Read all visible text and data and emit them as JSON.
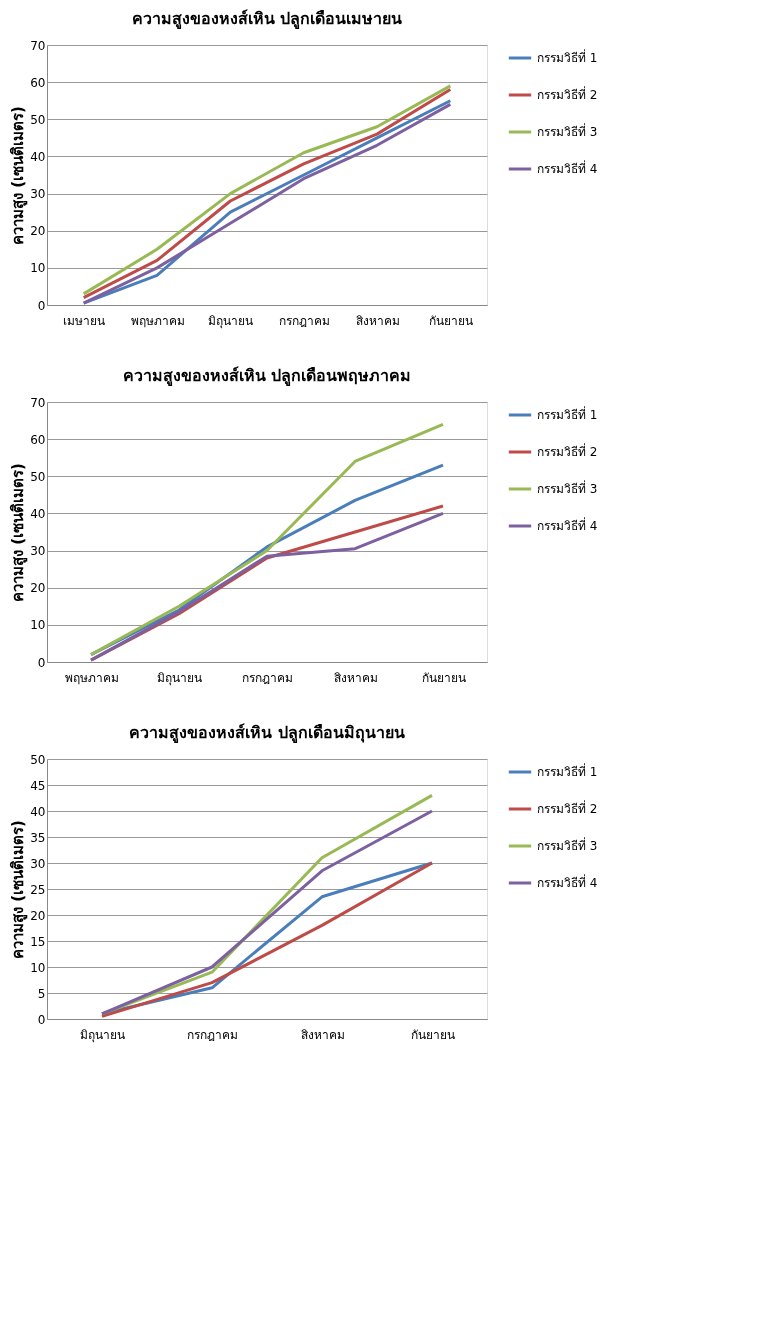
{
  "chart_data": [
    {
      "type": "line",
      "title": "ความสูงของหงส์เหิน ปลูกเดือนเมษายน",
      "ylabel": "ความสูง (เซนติเมตร)",
      "categories": [
        "เมษายน",
        "พฤษภาคม",
        "มิถุนายน",
        "กรกฎาคม",
        "สิงหาคม",
        "กันยายน"
      ],
      "series": [
        {
          "name": "กรรมวิธีที่ 1",
          "color": "#4a7ebb",
          "values": [
            0.5,
            8,
            25,
            35,
            45,
            55
          ]
        },
        {
          "name": "กรรมวิธีที่ 2",
          "color": "#be4b48",
          "values": [
            2,
            12,
            28,
            38,
            46,
            58
          ]
        },
        {
          "name": "กรรมวิธีที่ 3",
          "color": "#98b954",
          "values": [
            3,
            15,
            30,
            41,
            48,
            59
          ]
        },
        {
          "name": "กรรมวิธีที่ 4",
          "color": "#7d60a0",
          "values": [
            0.5,
            10,
            22,
            34,
            43,
            54
          ]
        }
      ],
      "ylim": [
        0,
        70
      ],
      "yticks": [
        0,
        10,
        20,
        30,
        40,
        50,
        60,
        70
      ],
      "grid": "y",
      "legend": "right",
      "marker": "none",
      "line_style": "solid"
    },
    {
      "type": "line",
      "title": "ความสูงของหงส์เหิน ปลูกเดือนพฤษภาคม",
      "ylabel": "ความสูง (เซนติเมตร)",
      "categories": [
        "พฤษภาคม",
        "มิถุนายน",
        "กรกฎาคม",
        "สิงหาคม",
        "กันยายน"
      ],
      "series": [
        {
          "name": "กรรมวิธีที่ 1",
          "color": "#4a7ebb",
          "values": [
            2,
            14,
            31,
            43.5,
            53
          ]
        },
        {
          "name": "กรรมวิธีที่ 2",
          "color": "#be4b48",
          "values": [
            0.5,
            13,
            28,
            35,
            42
          ]
        },
        {
          "name": "กรรมวิธีที่ 3",
          "color": "#98b954",
          "values": [
            2,
            15,
            30,
            54,
            64
          ]
        },
        {
          "name": "กรรมวิธีที่ 4",
          "color": "#7d60a0",
          "values": [
            0.5,
            13.5,
            28.5,
            30.5,
            40
          ]
        }
      ],
      "ylim": [
        0,
        70
      ],
      "yticks": [
        0,
        10,
        20,
        30,
        40,
        50,
        60,
        70
      ],
      "grid": "y",
      "legend": "right",
      "marker": "none",
      "line_style": "solid"
    },
    {
      "type": "line",
      "title": "ความสูงของหงส์เหิน ปลูกเดือนมิถุนายน",
      "ylabel": "ความสูง (เซนติเมตร)",
      "categories": [
        "มิถุนายน",
        "กรกฎาคม",
        "สิงหาคม",
        "กันยายน"
      ],
      "series": [
        {
          "name": "กรรมวิธีที่ 1",
          "color": "#4a7ebb",
          "values": [
            1,
            6,
            23.5,
            30
          ]
        },
        {
          "name": "กรรมวิธีที่ 2",
          "color": "#be4b48",
          "values": [
            0.5,
            7,
            18,
            30
          ]
        },
        {
          "name": "กรรมวิธีที่ 3",
          "color": "#98b954",
          "values": [
            1,
            9,
            31,
            43
          ]
        },
        {
          "name": "กรรมวิธีที่ 4",
          "color": "#7d60a0",
          "values": [
            1,
            10,
            28.5,
            40
          ]
        }
      ],
      "ylim": [
        0,
        50
      ],
      "yticks": [
        0,
        5,
        10,
        15,
        20,
        25,
        30,
        35,
        40,
        45,
        50
      ],
      "grid": "y",
      "legend": "right",
      "marker": "none",
      "line_style": "solid"
    }
  ]
}
